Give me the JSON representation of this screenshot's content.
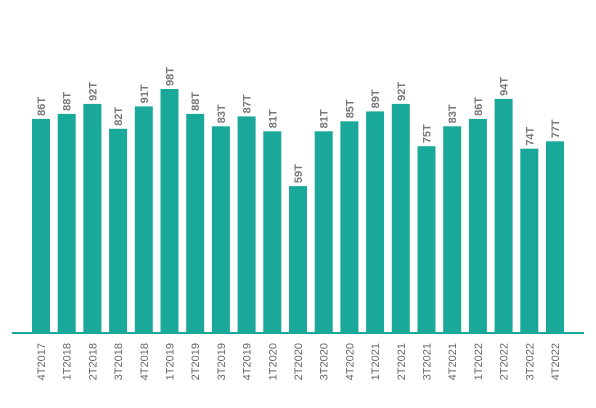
{
  "chart_data": {
    "type": "bar",
    "title": "",
    "xlabel": "",
    "ylabel": "",
    "categories": [
      "4T2017",
      "1T2018",
      "2T2018",
      "3T2018",
      "4T2018",
      "1T2019",
      "2T2019",
      "3T2019",
      "4T2019",
      "1T2020",
      "2T2020",
      "3T2020",
      "4T2020",
      "1T2021",
      "2T2021",
      "3T2021",
      "4T2021",
      "1T2022",
      "2T2022",
      "3T2022",
      "4T2022"
    ],
    "values": [
      86,
      88,
      92,
      82,
      91,
      98,
      88,
      83,
      87,
      81,
      59,
      81,
      85,
      89,
      92,
      75,
      83,
      86,
      94,
      74,
      77
    ],
    "data_labels": [
      "86T",
      "88T",
      "92T",
      "82T",
      "91T",
      "98T",
      "88T",
      "83T",
      "87T",
      "81T",
      "59T",
      "81T",
      "85T",
      "89T",
      "92T",
      "75T",
      "83T",
      "86T",
      "94T",
      "74T",
      "77T"
    ],
    "ylim": [
      0,
      100
    ],
    "grid": false,
    "legend": "none",
    "bar_color": "#1aa89a"
  }
}
